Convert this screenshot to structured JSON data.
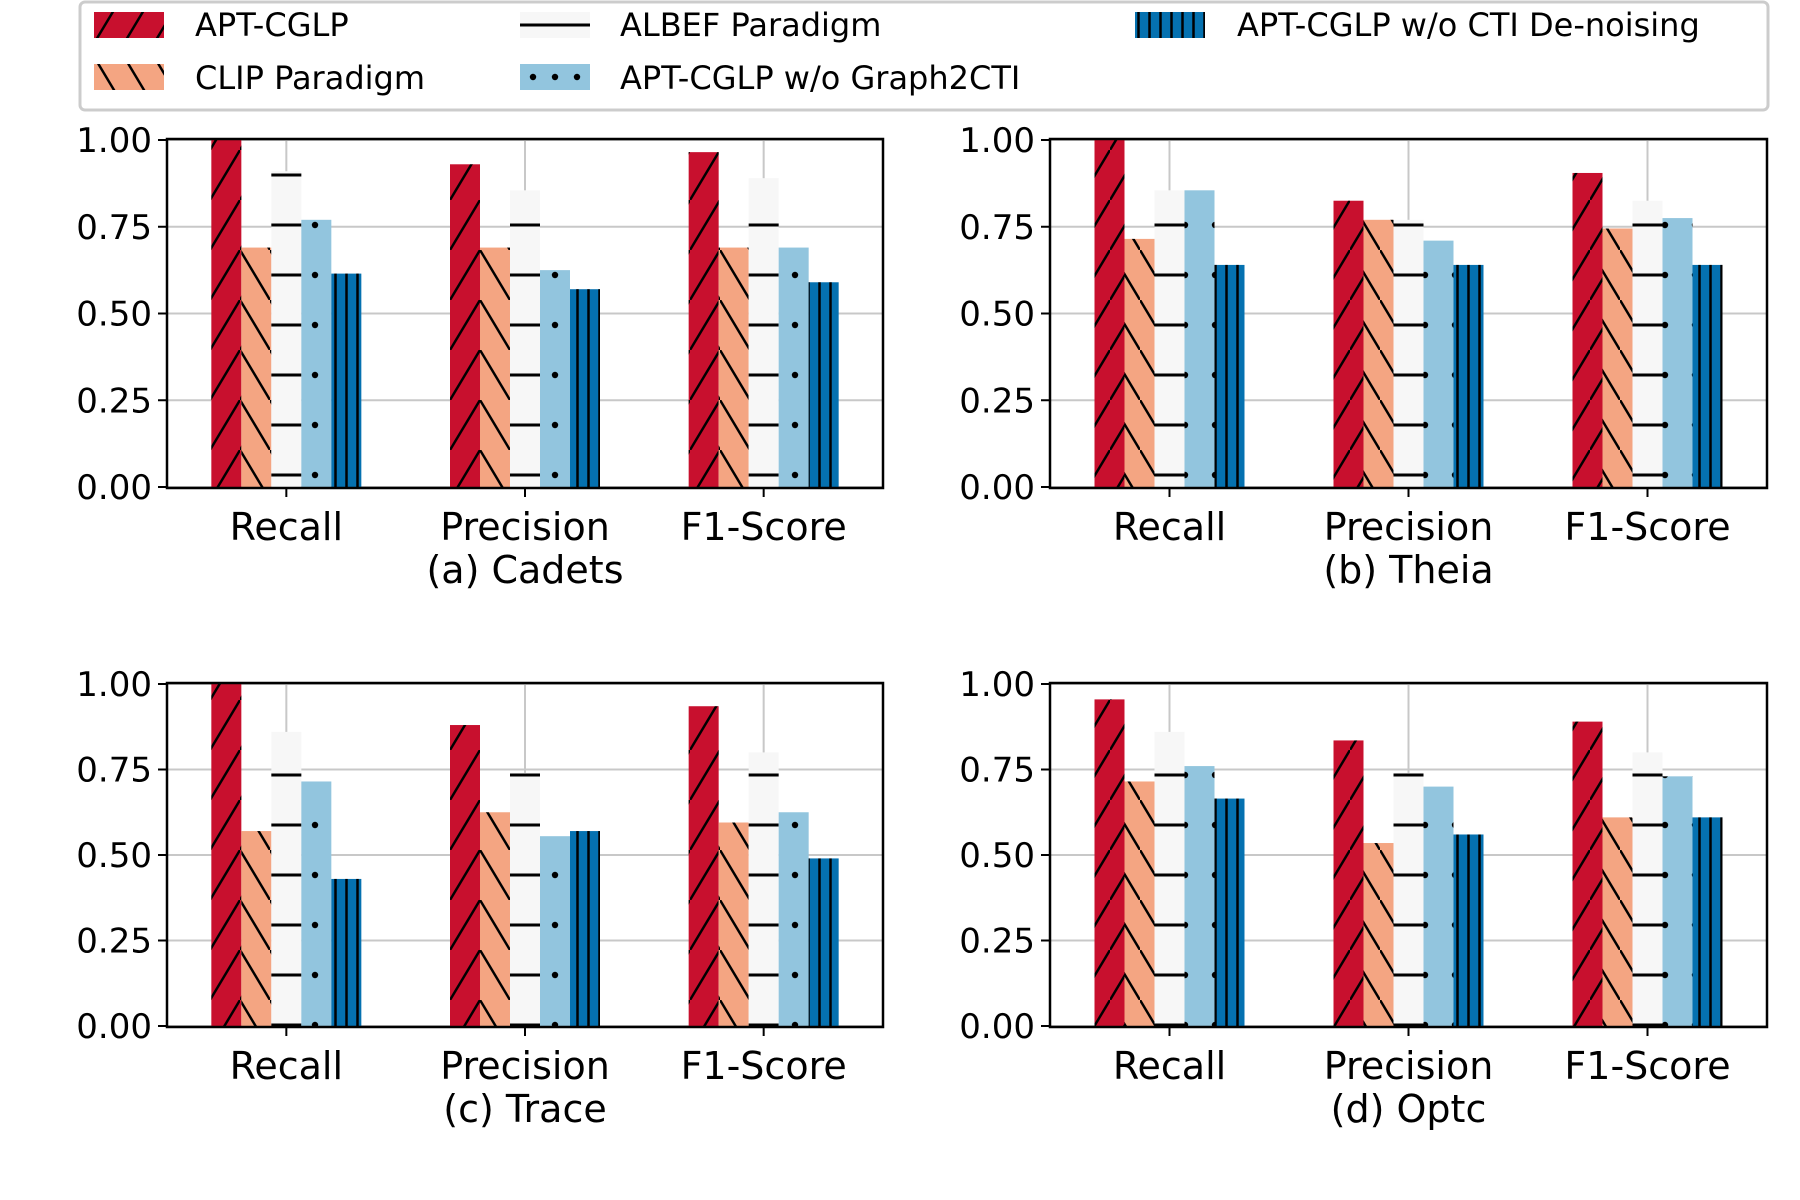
{
  "colors": {
    "apt_cglp": "#c8102e",
    "clip": "#f4a582",
    "albef": "#f7f7f7",
    "wo_graph2cti": "#92c5de",
    "wo_denoise": "#0571b0"
  },
  "legend": {
    "items": [
      {
        "key": "apt_cglp",
        "label": "APT-CGLP",
        "pattern": "slash"
      },
      {
        "key": "clip",
        "label": "CLIP Paradigm",
        "pattern": "backslash"
      },
      {
        "key": "albef",
        "label": "ALBEF Paradigm",
        "pattern": "dash"
      },
      {
        "key": "wo_graph2cti",
        "label": "APT-CGLP w/o Graph2CTI",
        "pattern": "dots"
      },
      {
        "key": "wo_denoise",
        "label": "APT-CGLP w/o CTI De-noising",
        "pattern": "vlines"
      }
    ]
  },
  "chart_data": [
    {
      "type": "bar",
      "title": "(a) Cadets",
      "categories": [
        "Recall",
        "Precision",
        "F1-Score"
      ],
      "ylim": [
        0,
        1
      ],
      "yticks": [
        "0.00",
        "0.25",
        "0.50",
        "0.75",
        "1.00"
      ],
      "series": [
        {
          "name": "APT-CGLP",
          "values": [
            1.0,
            0.93,
            0.965
          ]
        },
        {
          "name": "CLIP Paradigm",
          "values": [
            0.69,
            0.69,
            0.69
          ]
        },
        {
          "name": "ALBEF Paradigm",
          "values": [
            0.91,
            0.855,
            0.89
          ]
        },
        {
          "name": "APT-CGLP w/o Graph2CTI",
          "values": [
            0.77,
            0.625,
            0.69
          ]
        },
        {
          "name": "APT-CGLP w/o CTI De-noising",
          "values": [
            0.615,
            0.57,
            0.59
          ]
        }
      ]
    },
    {
      "type": "bar",
      "title": "(b) Theia",
      "categories": [
        "Recall",
        "Precision",
        "F1-Score"
      ],
      "ylim": [
        0,
        1
      ],
      "yticks": [
        "0.00",
        "0.25",
        "0.50",
        "0.75",
        "1.00"
      ],
      "series": [
        {
          "name": "APT-CGLP",
          "values": [
            1.0,
            0.825,
            0.905
          ]
        },
        {
          "name": "CLIP Paradigm",
          "values": [
            0.715,
            0.77,
            0.745
          ]
        },
        {
          "name": "ALBEF Paradigm",
          "values": [
            0.855,
            0.77,
            0.825
          ]
        },
        {
          "name": "APT-CGLP w/o Graph2CTI",
          "values": [
            0.855,
            0.71,
            0.775
          ]
        },
        {
          "name": "APT-CGLP w/o CTI De-noising",
          "values": [
            0.64,
            0.64,
            0.64
          ]
        }
      ]
    },
    {
      "type": "bar",
      "title": "(c) Trace",
      "categories": [
        "Recall",
        "Precision",
        "F1-Score"
      ],
      "ylim": [
        0,
        1
      ],
      "yticks": [
        "0.00",
        "0.25",
        "0.50",
        "0.75",
        "1.00"
      ],
      "series": [
        {
          "name": "APT-CGLP",
          "values": [
            1.0,
            0.88,
            0.935
          ]
        },
        {
          "name": "CLIP Paradigm",
          "values": [
            0.57,
            0.625,
            0.595
          ]
        },
        {
          "name": "ALBEF Paradigm",
          "values": [
            0.86,
            0.74,
            0.8
          ]
        },
        {
          "name": "APT-CGLP w/o Graph2CTI",
          "values": [
            0.715,
            0.555,
            0.625
          ]
        },
        {
          "name": "APT-CGLP w/o CTI De-noising",
          "values": [
            0.43,
            0.57,
            0.49
          ]
        }
      ]
    },
    {
      "type": "bar",
      "title": "(d) Optc",
      "categories": [
        "Recall",
        "Precision",
        "F1-Score"
      ],
      "ylim": [
        0,
        1
      ],
      "yticks": [
        "0.00",
        "0.25",
        "0.50",
        "0.75",
        "1.00"
      ],
      "series": [
        {
          "name": "APT-CGLP",
          "values": [
            0.955,
            0.835,
            0.89
          ]
        },
        {
          "name": "CLIP Paradigm",
          "values": [
            0.715,
            0.535,
            0.61
          ]
        },
        {
          "name": "ALBEF Paradigm",
          "values": [
            0.86,
            0.74,
            0.8
          ]
        },
        {
          "name": "APT-CGLP w/o Graph2CTI",
          "values": [
            0.76,
            0.7,
            0.73
          ]
        },
        {
          "name": "APT-CGLP w/o CTI De-noising",
          "values": [
            0.665,
            0.56,
            0.61
          ]
        }
      ]
    }
  ]
}
